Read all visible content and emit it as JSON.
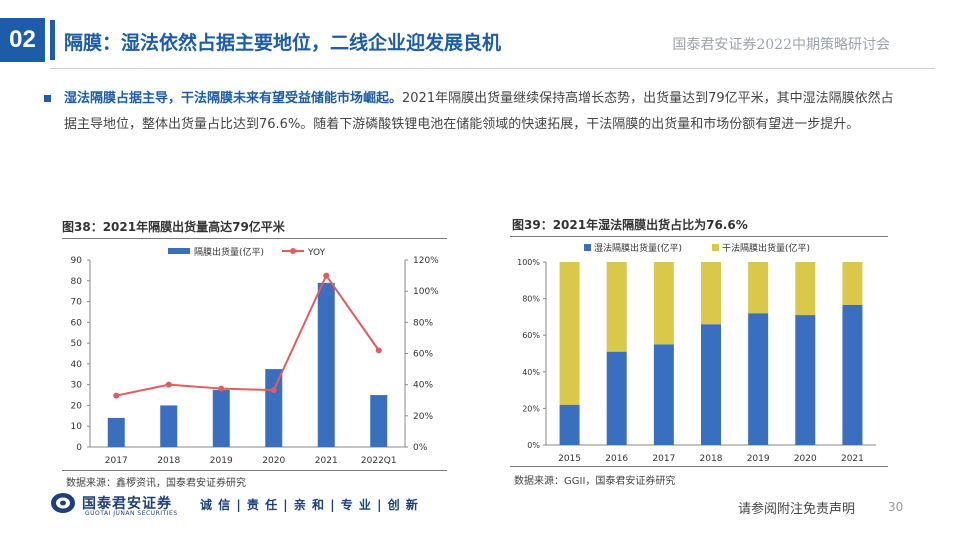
{
  "header": {
    "section_number": "02",
    "title": "隔膜：湿法依然占据主要地位，二线企业迎发展良机",
    "event": "国泰君安证券2022中期策略研讨会"
  },
  "body": {
    "highlight": "湿法隔膜占据主导，干法隔膜未来有望受益储能市场崛起。",
    "text": "2021年隔膜出货量继续保持高增长态势，出货量达到79亿平米，其中湿法隔膜依然占据主导地位，整体出货量占比达到76.6%。随着下游磷酸铁锂电池在储能领域的快速拓展，干法隔膜的出货量和市场份额有望进一步提升。"
  },
  "figures": {
    "left": {
      "caption": "图38：2021年隔膜出货量高达79亿平米",
      "source": "数据来源：鑫椤资讯，国泰君安证券研究"
    },
    "right": {
      "caption": "图39：2021年湿法隔膜出货占比为76.6%",
      "source": "数据来源：GGII，国泰君安证券研究"
    }
  },
  "chart_data": [
    {
      "type": "bar",
      "categories": [
        "2017",
        "2018",
        "2019",
        "2020",
        "2021",
        "2022Q1"
      ],
      "series": [
        {
          "name": "隔膜出货量(亿平)",
          "type": "bar",
          "axis": "left",
          "color": "#3a6fbf",
          "values": [
            14,
            20,
            27.5,
            37.5,
            79,
            25
          ]
        },
        {
          "name": "YOY",
          "type": "line",
          "axis": "right",
          "color": "#e55a5f",
          "values": [
            33,
            40,
            37.5,
            36.5,
            110,
            62
          ]
        }
      ],
      "ylim": [
        0,
        90
      ],
      "y_ticks": [
        "0",
        "10",
        "20",
        "30",
        "40",
        "50",
        "60",
        "70",
        "80",
        "90"
      ],
      "y2lim": [
        0,
        120
      ],
      "y2_ticks": [
        "0%",
        "20%",
        "40%",
        "60%",
        "80%",
        "100%",
        "120%"
      ],
      "legend": "top",
      "grid": false
    },
    {
      "type": "bar",
      "stacked": true,
      "categories": [
        "2015",
        "2016",
        "2017",
        "2018",
        "2019",
        "2020",
        "2021"
      ],
      "series": [
        {
          "name": "湿法隔膜出货量(亿平)",
          "color": "#3a6fbf",
          "values": [
            22,
            51,
            55,
            66,
            72,
            71,
            76.6
          ]
        },
        {
          "name": "干法隔膜出货量(亿平)",
          "color": "#d9c84a",
          "values": [
            78,
            49,
            45,
            34,
            28,
            29,
            23.4
          ]
        }
      ],
      "ylim": [
        0,
        100
      ],
      "y_ticks": [
        "0%",
        "20%",
        "40%",
        "60%",
        "80%",
        "100%"
      ],
      "legend": "top",
      "grid": false
    }
  ],
  "footer": {
    "logo_cn": "国泰君安证券",
    "logo_en": "GUOTAI JUNAN SECURITIES",
    "slogan": "诚 信 | 责 任 | 亲 和 | 专 业 | 创 新",
    "disclaimer": "请参阅附注免责声明",
    "page": "30"
  }
}
